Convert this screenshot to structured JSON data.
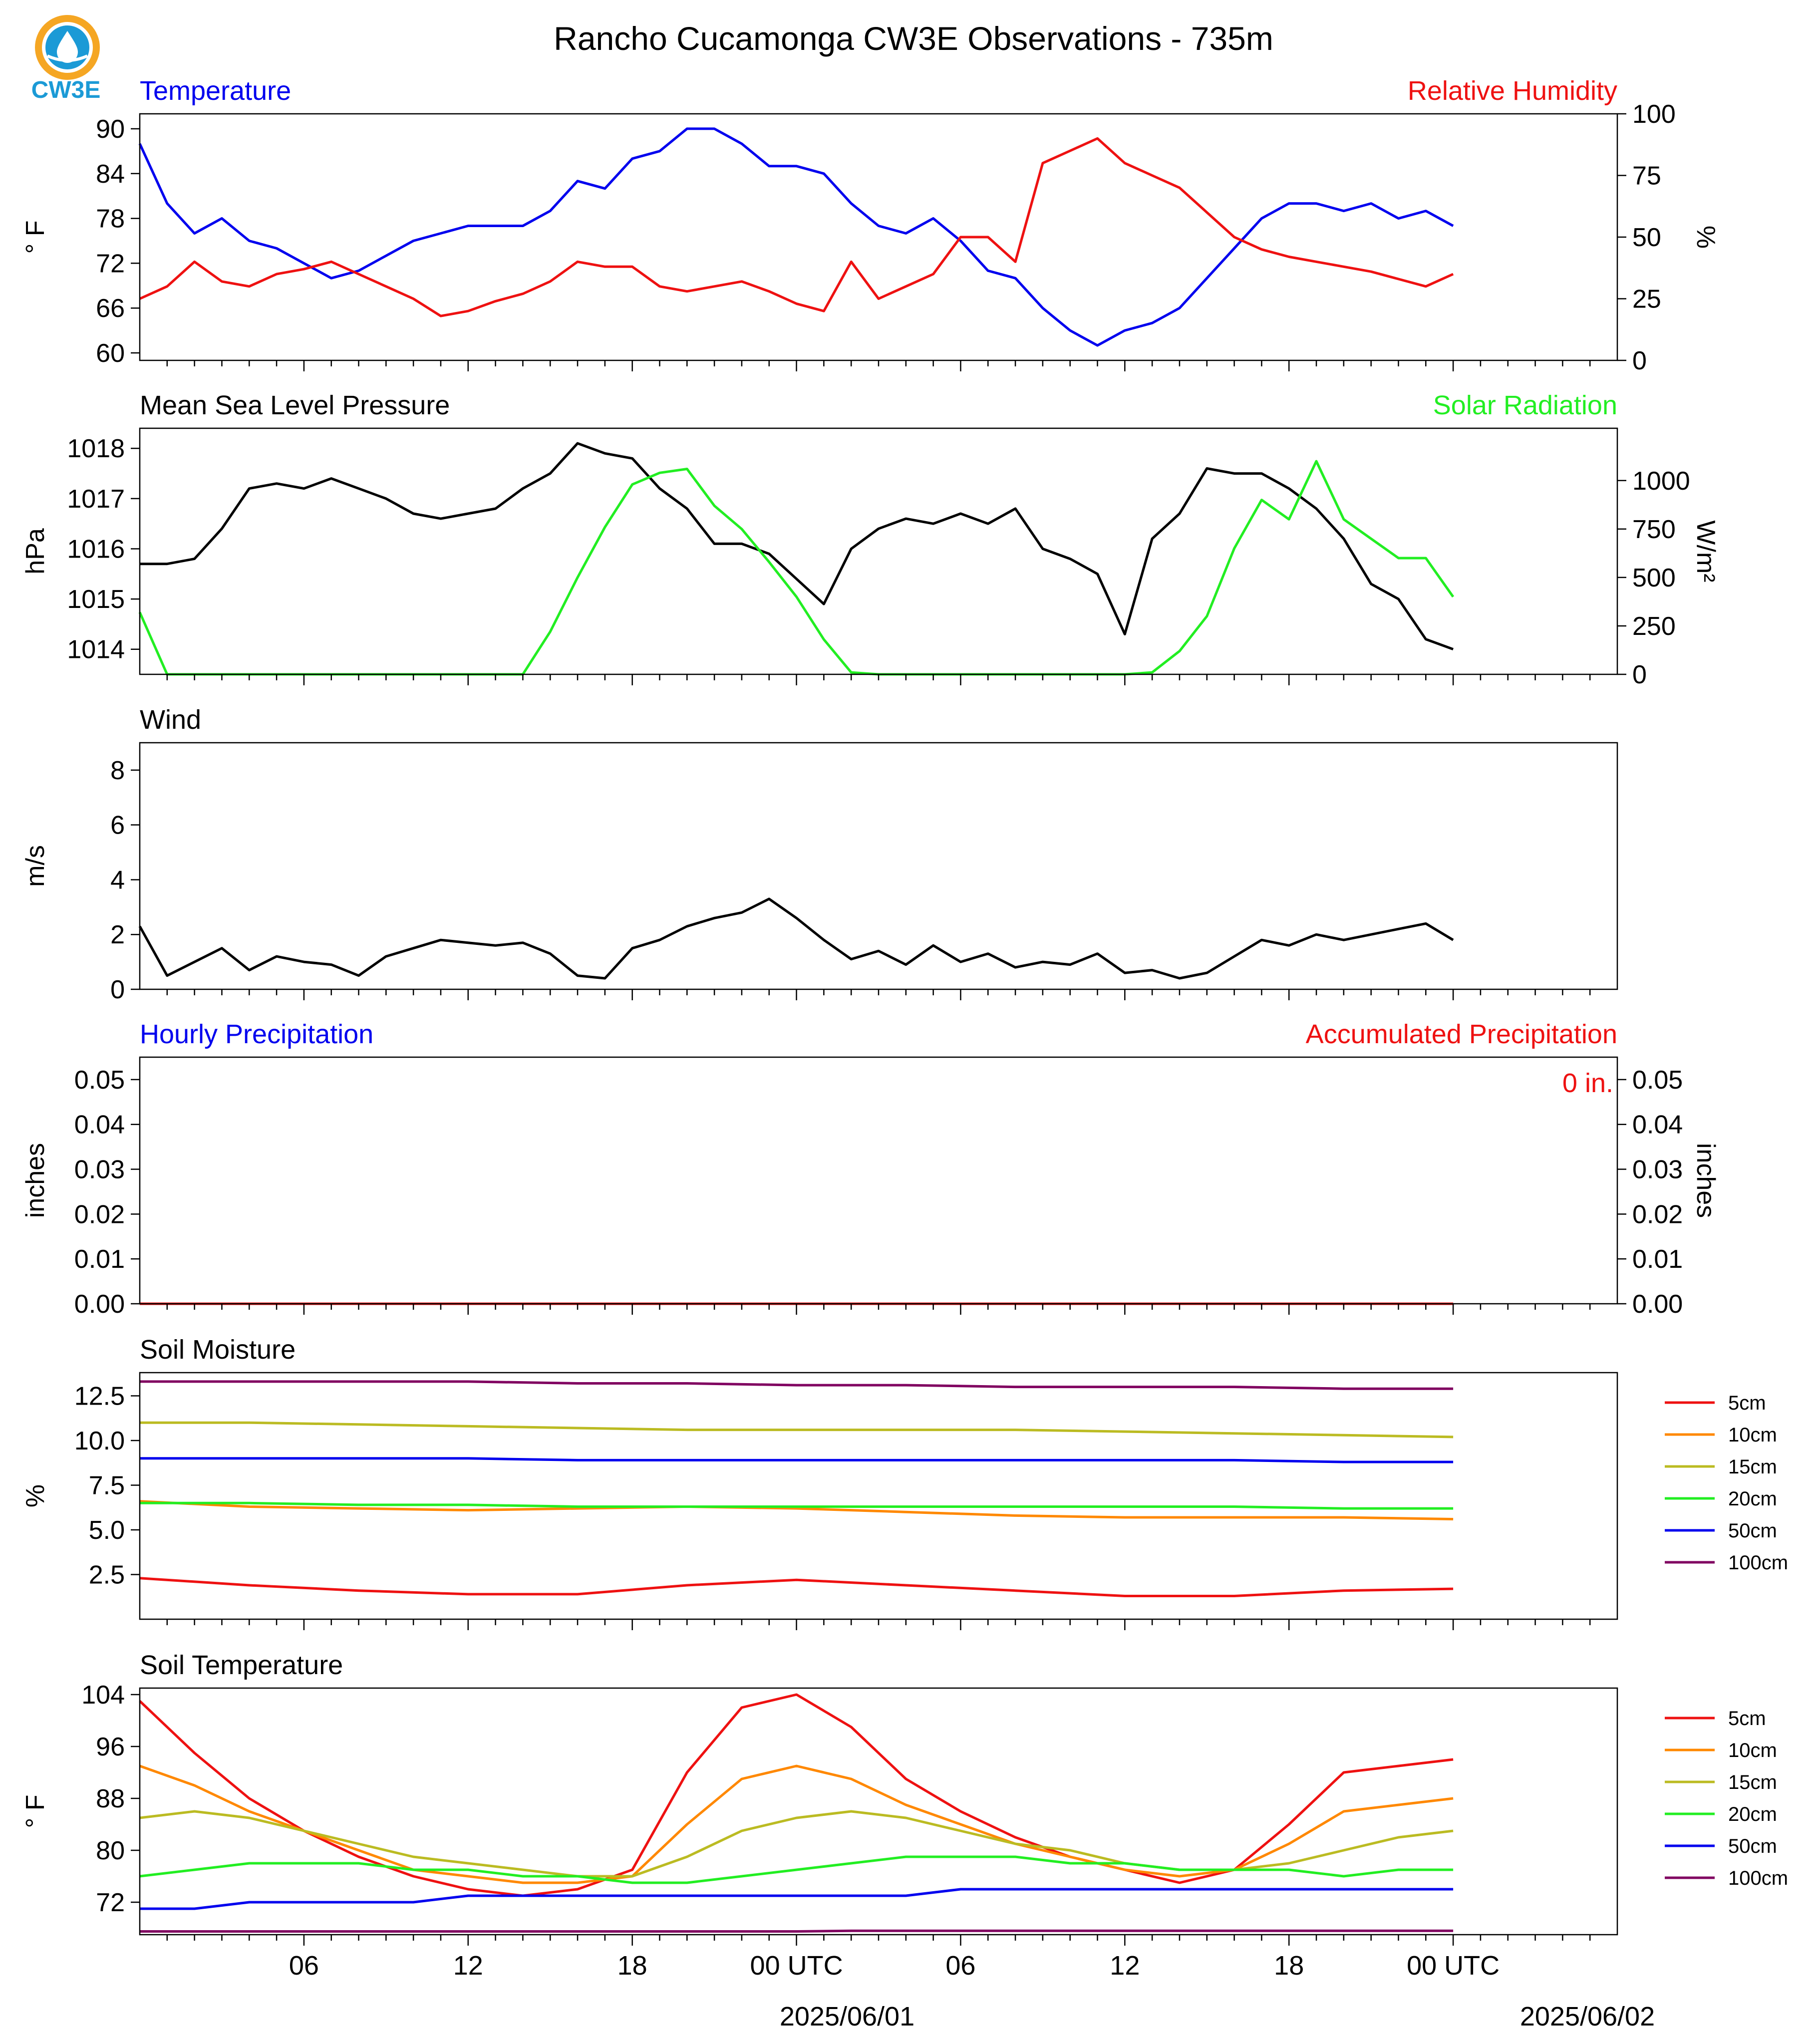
{
  "logo": {
    "text": "CW3E",
    "ring_color": "#f5a623",
    "drop_color": "#1b9ad6"
  },
  "title": "Rancho Cucamonga CW3E Observations - 735m",
  "x_axis": {
    "ticks": [
      "06",
      "12",
      "18",
      "00 UTC",
      "06",
      "12",
      "18",
      "00 UTC"
    ],
    "dates": [
      "2025/06/01",
      "2025/06/02"
    ]
  },
  "colors": {
    "blue": "#0000ee",
    "red": "#ee1111",
    "green": "#22ee22",
    "black": "#000000",
    "orange": "#ff8800",
    "olive": "#bbbb22",
    "purple": "#800060"
  },
  "chart_data": [
    {
      "type": "line",
      "title_left": "Temperature",
      "title_right": "Relative Humidity",
      "ylabel_left": "° F",
      "ylabel_right": "%",
      "ylim_left": [
        59,
        92
      ],
      "yticks_left": [
        90,
        84,
        78,
        72,
        66,
        60
      ],
      "ylim_right": [
        0,
        100
      ],
      "yticks_right": [
        100,
        75,
        50,
        25,
        0
      ],
      "x_hours": [
        0,
        1,
        2,
        3,
        4,
        5,
        6,
        7,
        8,
        9,
        10,
        11,
        12,
        13,
        14,
        15,
        16,
        17,
        18,
        19,
        20,
        21,
        22,
        23,
        24,
        25,
        26,
        27,
        28,
        29,
        30,
        31,
        32,
        33,
        34,
        35,
        36,
        37,
        38,
        39,
        40,
        41,
        42,
        43,
        44,
        45,
        46,
        47,
        48
      ],
      "series": [
        {
          "name": "Temperature",
          "axis": "left",
          "color": "#0000ee",
          "values": [
            88,
            80,
            76,
            78,
            75,
            74,
            72,
            70,
            71,
            73,
            75,
            76,
            77,
            77,
            77,
            79,
            83,
            82,
            86,
            87,
            90,
            90,
            88,
            85,
            85,
            84,
            80,
            77,
            76,
            78,
            75,
            71,
            70,
            66,
            63,
            61,
            63,
            64,
            66,
            70,
            74,
            78,
            80,
            80,
            79,
            80,
            78,
            79,
            77
          ]
        },
        {
          "name": "Relative Humidity",
          "axis": "right",
          "color": "#ee1111",
          "values": [
            25,
            30,
            40,
            32,
            30,
            35,
            37,
            40,
            35,
            30,
            25,
            18,
            20,
            24,
            27,
            32,
            40,
            38,
            38,
            30,
            28,
            30,
            32,
            28,
            23,
            20,
            40,
            25,
            30,
            35,
            50,
            50,
            40,
            80,
            85,
            90,
            80,
            75,
            70,
            60,
            50,
            45,
            42,
            40,
            38,
            36,
            33,
            30,
            35
          ]
        }
      ]
    },
    {
      "type": "line",
      "title_left": "Mean Sea Level Pressure",
      "title_right": "Solar Radiation",
      "ylabel_left": "hPa",
      "ylabel_right": "W/m²",
      "ylim_left": [
        1013.5,
        1018.4
      ],
      "yticks_left": [
        1018,
        1017,
        1016,
        1015,
        1014
      ],
      "ylim_right": [
        0,
        1270
      ],
      "yticks_right": [
        1000,
        750,
        500,
        250,
        0
      ],
      "x_hours": [
        0,
        1,
        2,
        3,
        4,
        5,
        6,
        7,
        8,
        9,
        10,
        11,
        12,
        13,
        14,
        15,
        16,
        17,
        18,
        19,
        20,
        21,
        22,
        23,
        24,
        25,
        26,
        27,
        28,
        29,
        30,
        31,
        32,
        33,
        34,
        35,
        36,
        37,
        38,
        39,
        40,
        41,
        42,
        43,
        44,
        45,
        46,
        47,
        48
      ],
      "series": [
        {
          "name": "Mean Sea Level Pressure",
          "axis": "left",
          "color": "#000000",
          "values": [
            1015.7,
            1015.7,
            1015.8,
            1016.4,
            1017.2,
            1017.3,
            1017.2,
            1017.4,
            1017.2,
            1017.0,
            1016.7,
            1016.6,
            1016.7,
            1016.8,
            1017.2,
            1017.5,
            1018.1,
            1017.9,
            1017.8,
            1017.2,
            1016.8,
            1016.1,
            1016.1,
            1015.9,
            1015.4,
            1014.9,
            1016.0,
            1016.4,
            1016.6,
            1016.5,
            1016.7,
            1016.5,
            1016.8,
            1016.0,
            1015.8,
            1015.5,
            1014.3,
            1016.2,
            1016.7,
            1017.6,
            1017.5,
            1017.5,
            1017.2,
            1016.8,
            1016.2,
            1015.3,
            1015.0,
            1014.2,
            1014.0
          ]
        },
        {
          "name": "Solar Radiation",
          "axis": "right",
          "color": "#22ee22",
          "values": [
            320,
            0,
            0,
            0,
            0,
            0,
            0,
            0,
            0,
            0,
            0,
            0,
            0,
            0,
            0,
            220,
            500,
            760,
            980,
            1040,
            1060,
            870,
            750,
            580,
            400,
            180,
            10,
            0,
            0,
            0,
            0,
            0,
            0,
            0,
            0,
            0,
            0,
            10,
            120,
            300,
            650,
            900,
            800,
            1100,
            800,
            700,
            600,
            600,
            400
          ]
        }
      ]
    },
    {
      "type": "line",
      "title_left": "Wind",
      "ylabel_left": "m/s",
      "ylim_left": [
        0,
        9
      ],
      "yticks_left": [
        8,
        6,
        4,
        2,
        0
      ],
      "x_hours": [
        0,
        1,
        2,
        3,
        4,
        5,
        6,
        7,
        8,
        9,
        10,
        11,
        12,
        13,
        14,
        15,
        16,
        17,
        18,
        19,
        20,
        21,
        22,
        23,
        24,
        25,
        26,
        27,
        28,
        29,
        30,
        31,
        32,
        33,
        34,
        35,
        36,
        37,
        38,
        39,
        40,
        41,
        42,
        43,
        44,
        45,
        46,
        47,
        48
      ],
      "series": [
        {
          "name": "Wind speed",
          "axis": "left",
          "color": "#000000",
          "values": [
            2.3,
            0.5,
            1.0,
            1.5,
            0.7,
            1.2,
            1.0,
            0.9,
            0.5,
            1.2,
            1.5,
            1.8,
            1.7,
            1.6,
            1.7,
            1.3,
            0.5,
            0.4,
            1.5,
            1.8,
            2.3,
            2.6,
            2.8,
            3.3,
            2.6,
            1.8,
            1.1,
            1.4,
            0.9,
            1.6,
            1.0,
            1.3,
            0.8,
            1.0,
            0.9,
            1.3,
            0.6,
            0.7,
            0.4,
            0.6,
            1.2,
            1.8,
            1.6,
            2.0,
            1.8,
            2.0,
            2.2,
            2.4,
            1.8
          ]
        }
      ]
    },
    {
      "type": "line",
      "title_left": "Hourly Precipitation",
      "title_right": "Accumulated Precipitation",
      "annotation": "0 in.",
      "ylabel_left": "inches",
      "ylabel_right": "inches",
      "ylim_left": [
        0,
        0.055
      ],
      "yticks_left": [
        "0.05",
        "0.04",
        "0.03",
        "0.02",
        "0.01",
        "0.00"
      ],
      "ylim_right": [
        0,
        0.055
      ],
      "yticks_right": [
        "0.05",
        "0.04",
        "0.03",
        "0.02",
        "0.01",
        "0.00"
      ],
      "x_hours": [
        0,
        48
      ],
      "series": [
        {
          "name": "Hourly Precipitation",
          "axis": "left",
          "color": "#0000ee",
          "values": [
            0,
            0
          ]
        },
        {
          "name": "Accumulated Precipitation",
          "axis": "right",
          "color": "#ee1111",
          "values": [
            0,
            0
          ]
        }
      ]
    },
    {
      "type": "line",
      "title_left": "Soil Moisture",
      "ylabel_left": "%",
      "ylim_left": [
        0,
        13.8
      ],
      "yticks_left": [
        "12.5",
        "10.0",
        "7.5",
        "5.0",
        "2.5"
      ],
      "legend": "right",
      "x_hours": [
        0,
        4,
        8,
        12,
        16,
        20,
        24,
        28,
        32,
        36,
        40,
        44,
        48
      ],
      "series": [
        {
          "name": "5cm",
          "color": "#ee1111",
          "values": [
            2.3,
            1.9,
            1.6,
            1.4,
            1.4,
            1.9,
            2.2,
            1.9,
            1.6,
            1.3,
            1.3,
            1.6,
            1.7
          ]
        },
        {
          "name": "10cm",
          "color": "#ff8800",
          "values": [
            6.6,
            6.3,
            6.2,
            6.1,
            6.2,
            6.3,
            6.2,
            6.0,
            5.8,
            5.7,
            5.7,
            5.7,
            5.6
          ]
        },
        {
          "name": "15cm",
          "color": "#bbbb22",
          "values": [
            11.0,
            11.0,
            10.9,
            10.8,
            10.7,
            10.6,
            10.6,
            10.6,
            10.6,
            10.5,
            10.4,
            10.3,
            10.2
          ]
        },
        {
          "name": "20cm",
          "color": "#22ee22",
          "values": [
            6.5,
            6.5,
            6.4,
            6.4,
            6.3,
            6.3,
            6.3,
            6.3,
            6.3,
            6.3,
            6.3,
            6.2,
            6.2
          ]
        },
        {
          "name": "50cm",
          "color": "#0000ee",
          "values": [
            9.0,
            9.0,
            9.0,
            9.0,
            8.9,
            8.9,
            8.9,
            8.9,
            8.9,
            8.9,
            8.9,
            8.8,
            8.8
          ]
        },
        {
          "name": "100cm",
          "color": "#800060",
          "values": [
            13.3,
            13.3,
            13.3,
            13.3,
            13.2,
            13.2,
            13.1,
            13.1,
            13.0,
            13.0,
            13.0,
            12.9,
            12.9
          ]
        }
      ]
    },
    {
      "type": "line",
      "title_left": "Soil Temperature",
      "ylabel_left": "° F",
      "ylim_left": [
        67,
        105
      ],
      "yticks_left": [
        104,
        96,
        88,
        80,
        72
      ],
      "legend": "right",
      "x_hours": [
        0,
        2,
        4,
        6,
        8,
        10,
        12,
        14,
        16,
        18,
        20,
        22,
        24,
        26,
        28,
        30,
        32,
        34,
        36,
        38,
        40,
        42,
        44,
        46,
        48
      ],
      "series": [
        {
          "name": "5cm",
          "color": "#ee1111",
          "values": [
            103,
            95,
            88,
            83,
            79,
            76,
            74,
            73,
            74,
            77,
            92,
            102,
            104,
            99,
            91,
            86,
            82,
            79,
            77,
            75,
            77,
            84,
            92,
            93,
            94
          ]
        },
        {
          "name": "10cm",
          "color": "#ff8800",
          "values": [
            93,
            90,
            86,
            83,
            80,
            77,
            76,
            75,
            75,
            76,
            84,
            91,
            93,
            91,
            87,
            84,
            81,
            79,
            77,
            76,
            77,
            81,
            86,
            87,
            88
          ]
        },
        {
          "name": "15cm",
          "color": "#bbbb22",
          "values": [
            85,
            86,
            85,
            83,
            81,
            79,
            78,
            77,
            76,
            76,
            79,
            83,
            85,
            86,
            85,
            83,
            81,
            80,
            78,
            77,
            77,
            78,
            80,
            82,
            83
          ]
        },
        {
          "name": "20cm",
          "color": "#22ee22",
          "values": [
            76,
            77,
            78,
            78,
            78,
            77,
            77,
            76,
            76,
            75,
            75,
            76,
            77,
            78,
            79,
            79,
            79,
            78,
            78,
            77,
            77,
            77,
            76,
            77,
            77
          ]
        },
        {
          "name": "50cm",
          "color": "#0000ee",
          "values": [
            71,
            71,
            72,
            72,
            72,
            72,
            73,
            73,
            73,
            73,
            73,
            73,
            73,
            73,
            73,
            74,
            74,
            74,
            74,
            74,
            74,
            74,
            74,
            74,
            74
          ]
        },
        {
          "name": "100cm",
          "color": "#800060",
          "values": [
            67.5,
            67.5,
            67.5,
            67.5,
            67.5,
            67.5,
            67.5,
            67.5,
            67.5,
            67.5,
            67.5,
            67.5,
            67.5,
            67.6,
            67.6,
            67.6,
            67.6,
            67.6,
            67.6,
            67.6,
            67.6,
            67.6,
            67.6,
            67.6,
            67.6
          ]
        }
      ]
    }
  ]
}
